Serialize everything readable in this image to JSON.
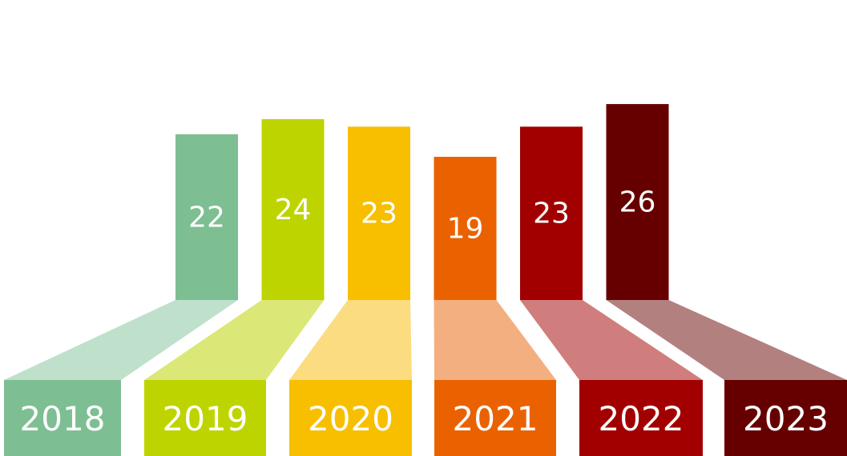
{
  "chart_data": {
    "type": "bar",
    "categories": [
      "2018",
      "2019",
      "2020",
      "2021",
      "2022",
      "2023"
    ],
    "values": [
      22,
      24,
      23,
      19,
      23,
      26
    ],
    "title": "",
    "xlabel": "",
    "ylabel": "",
    "ylim": [
      0,
      26
    ],
    "grid": false,
    "colors": [
      "#7dbf92",
      "#bdd400",
      "#f7bf00",
      "#ea6200",
      "#a20000",
      "#660000"
    ],
    "fan_colors": [
      "#bfe0cb",
      "#dbe878",
      "#fbdc80",
      "#f4af80",
      "#d07d7d",
      "#b38080"
    ]
  }
}
